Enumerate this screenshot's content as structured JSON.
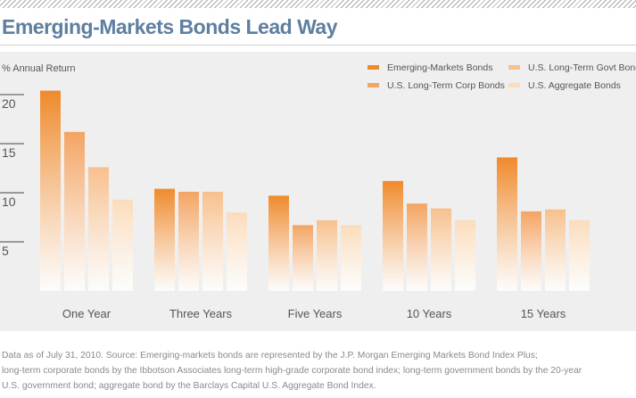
{
  "title": "Emerging-Markets Bonds Lead Way",
  "colors": {
    "title": "#5e7fa0",
    "panel": "#efefef",
    "series": [
      "#ef8a2c",
      "#f4a462",
      "#f7c08d",
      "#fbdcbc"
    ]
  },
  "chart_data": {
    "type": "bar",
    "ylabel": "% Annual Return",
    "ylim": [
      0,
      22
    ],
    "yticks": [
      5,
      10,
      15,
      20
    ],
    "grid": false,
    "legend_position": "top-right",
    "categories": [
      "One Year",
      "Three Years",
      "Five Years",
      "10 Years",
      "15 Years"
    ],
    "series": [
      {
        "name": "Emerging-Markets Bonds",
        "values": [
          20.4,
          10.4,
          9.7,
          11.2,
          13.6
        ]
      },
      {
        "name": "U.S. Long-Term Corp Bonds",
        "values": [
          16.2,
          10.1,
          6.7,
          8.9,
          8.1
        ]
      },
      {
        "name": "U.S. Long-Term Govt Bonds",
        "values": [
          12.6,
          10.1,
          7.2,
          8.4,
          8.3
        ]
      },
      {
        "name": "U.S. Aggregate Bonds",
        "values": [
          9.3,
          8.0,
          6.7,
          7.2,
          7.2
        ]
      }
    ]
  },
  "source_lines": [
    "Data as of July 31, 2010. Source: Emerging-markets bonds are represented by the J.P. Morgan Emerging Markets Bond Index Plus;",
    "long-term corporate bonds by the Ibbotson Associates long-term high-grade corporate bond index; long-term government bonds by the 20-year",
    "U.S. government bond; aggregate bond by the Barclays Capital U.S. Aggregate Bond Index."
  ]
}
